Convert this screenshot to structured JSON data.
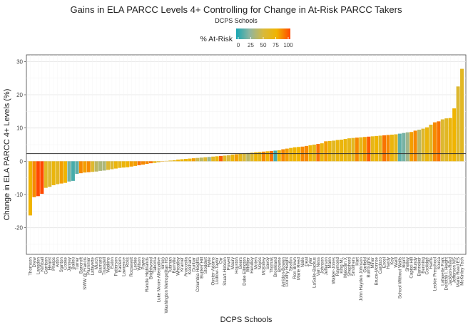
{
  "chart_data": {
    "type": "bar",
    "title": "Gains in ELA PARCC Levels 4+ Controlling for Change in At-Risk PARCC Takers",
    "subtitle": "DCPS Schools",
    "xlabel": "DCPS Schools",
    "ylabel": "Change in ELA PARCC 4+ Levels (%)",
    "ylim": [
      -28,
      32
    ],
    "yticks": [
      -20,
      -10,
      0,
      10,
      20,
      30
    ],
    "reference_line": 2.3,
    "legend": {
      "title": "% At-Risk",
      "ticks": [
        0,
        25,
        50,
        75,
        100
      ],
      "colors": [
        "#17a6b3",
        "#8fb5a0",
        "#d8b93c",
        "#f0b400",
        "#ff4800"
      ],
      "position": "top-center"
    },
    "categories": [
      "Thomson",
      "Drew",
      "Langdon",
      "Kimball",
      "Garrison",
      "Hearst",
      "Phelps",
      "Aiton",
      "Stanton",
      "Cooke",
      "Janney",
      "Ballou",
      "Turner",
      "Bancroft",
      "SWW @ Francis",
      "Plummer",
      "Lafayette",
      "Murch",
      "Barnard",
      "Truesdell",
      "Watkins",
      "Eaton",
      "Patterson",
      "Eastern",
      "Lawrence",
      "Ross",
      "Roosevelt",
      "Leckie",
      "Wilson",
      "Payne",
      "Randle Highlands",
      "Brightwood",
      "Takoma",
      "Luke Moore Alternative",
      "Simon",
      "Washington Metropolitan HS",
      "Tubman",
      "Burrville",
      "Wheatley",
      "Kramer",
      "Anacostia",
      "Ketcham",
      "Dunbar",
      "Columbia Heights",
      "Bunker Hill",
      "Stoddert",
      "Hyde",
      "Oyster-Adams",
      "Ludlow-Taylor",
      "Orr",
      "Stuart-Hobson",
      "Powell",
      "Maury",
      "Houston",
      "Beers",
      "Duke Ellington",
      "Whittier",
      "Hendley",
      "Moten",
      "Noyes",
      "McKinley",
      "Savoy",
      "Thomas",
      "Brookland",
      "Browne",
      "Amidon-Bowen",
      "Dorothy Height",
      "Seaton",
      "Ron Brown",
      "Marie Reed",
      "Nalle",
      "Deal",
      "Tyler",
      "LaSalle-Backus",
      "Van Ness",
      "Johnson",
      "Jefferson",
      "Mann",
      "Walker-Jones",
      "Raymond",
      "King ML",
      "Malcolm X",
      "Shepherd",
      "Smothers",
      "Hart",
      "John Hayden Johnson",
      "Garfield",
      "Burroughs",
      "Miner",
      "Bruce-Monroe",
      "Cardozo",
      "Excel",
      "Hardy",
      "Key",
      "Ward",
      "School Without Walls",
      "Brent",
      "Shelley",
      "Capitol Hill",
      "Mundy",
      "Banneker",
      "Benning",
      "Coolidge",
      "Harris",
      "Leckie Preschool",
      "Sousa",
      "Lafayette Park",
      "Dorothy I. Height",
      "Jackson-Reed",
      "Jefferson MS",
      "Marie Reed ES",
      "McKinley Tech"
    ],
    "values": [
      -16.3,
      -10.8,
      -10.5,
      -9.8,
      -8.0,
      -7.7,
      -7.2,
      -6.9,
      -6.7,
      -6.5,
      -6.1,
      -5.9,
      -3.8,
      -3.6,
      -3.4,
      -3.3,
      -3.2,
      -3.1,
      -2.9,
      -2.8,
      -2.6,
      -2.4,
      -2.2,
      -2.0,
      -1.9,
      -1.8,
      -1.6,
      -1.4,
      -1.2,
      -1.0,
      -0.8,
      -0.6,
      -0.5,
      -0.3,
      -0.1,
      0.1,
      0.2,
      0.3,
      0.5,
      0.6,
      0.7,
      0.8,
      0.9,
      1.0,
      1.1,
      1.2,
      1.3,
      1.4,
      1.5,
      1.6,
      1.7,
      1.8,
      2.0,
      2.1,
      2.3,
      2.4,
      2.5,
      2.6,
      2.7,
      2.8,
      2.9,
      3.0,
      3.1,
      3.2,
      3.3,
      3.6,
      3.8,
      4.0,
      4.2,
      4.3,
      4.4,
      4.6,
      4.8,
      5.0,
      5.2,
      5.4,
      6.0,
      6.1,
      6.2,
      6.4,
      6.5,
      6.7,
      6.9,
      7.0,
      7.1,
      7.2,
      7.3,
      7.4,
      7.5,
      7.6,
      7.7,
      7.8,
      7.9,
      8.0,
      8.1,
      8.3,
      8.5,
      8.7,
      8.8,
      9.2,
      9.5,
      9.8,
      10.2,
      11.0,
      11.7,
      12.0,
      12.6,
      12.9,
      13.0,
      15.9,
      22.5,
      27.8
    ],
    "at_risk": [
      75,
      85,
      100,
      100,
      60,
      55,
      70,
      60,
      80,
      75,
      20,
      10,
      15,
      85,
      80,
      85,
      55,
      40,
      35,
      35,
      55,
      55,
      70,
      65,
      70,
      75,
      80,
      80,
      90,
      85,
      85,
      90,
      70,
      60,
      80,
      70,
      65,
      65,
      75,
      70,
      70,
      75,
      80,
      45,
      40,
      55,
      30,
      60,
      70,
      95,
      60,
      50,
      70,
      80,
      65,
      50,
      40,
      55,
      75,
      65,
      85,
      75,
      90,
      10,
      75,
      85,
      80,
      70,
      75,
      75,
      85,
      85,
      75,
      65,
      90,
      70,
      80,
      70,
      60,
      70,
      70,
      70,
      65,
      60,
      85,
      65,
      80,
      95,
      65,
      75,
      60,
      90,
      85,
      70,
      65,
      15,
      20,
      30,
      80,
      85,
      40,
      55,
      70,
      60,
      85,
      90,
      55,
      60,
      70,
      75,
      55,
      60
    ]
  }
}
